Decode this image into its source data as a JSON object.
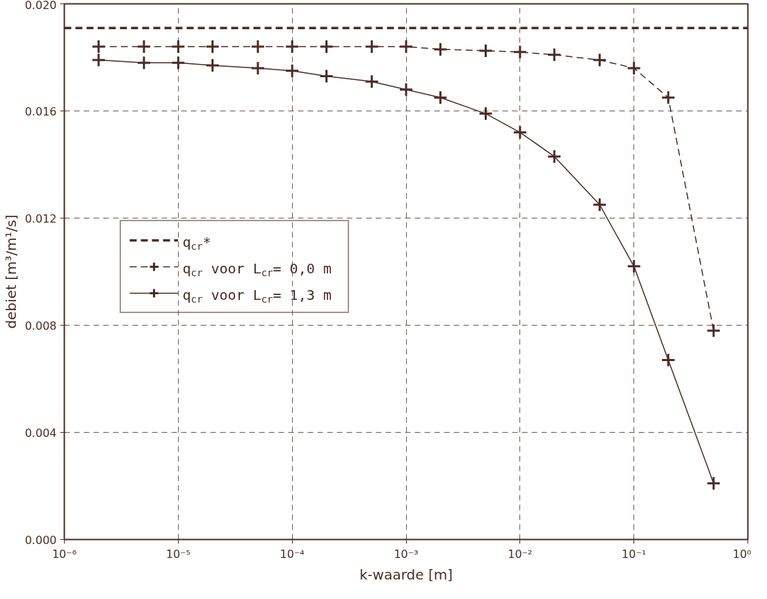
{
  "chart_data": {
    "type": "line",
    "xlabel": "k-waarde [m]",
    "ylabel": "debiet [m³/m¹/s]",
    "log": "x",
    "xlim": [
      1e-06,
      1
    ],
    "ylim": [
      0,
      0.02
    ],
    "xticks": [
      {
        "value": 1e-06,
        "label": "10⁻⁶"
      },
      {
        "value": 1e-05,
        "label": "10⁻⁵"
      },
      {
        "value": 0.0001,
        "label": "10⁻⁴"
      },
      {
        "value": 0.001,
        "label": "10⁻³"
      },
      {
        "value": 0.01,
        "label": "10⁻²"
      },
      {
        "value": 0.1,
        "label": "10⁻¹"
      },
      {
        "value": 1,
        "label": "10⁰"
      }
    ],
    "yticks": [
      {
        "value": 0,
        "label": "0.000"
      },
      {
        "value": 0.004,
        "label": "0.004"
      },
      {
        "value": 0.008,
        "label": "0.008"
      },
      {
        "value": 0.012,
        "label": "0.012"
      },
      {
        "value": 0.016,
        "label": "0.016"
      },
      {
        "value": 0.02,
        "label": "0.020"
      }
    ],
    "grid": true,
    "legend": "left",
    "series": [
      {
        "name": "q$_{cr}$*",
        "color": "#4a2c24",
        "marker": "none",
        "line_style": "dashed",
        "x": [
          1e-06,
          1
        ],
        "values": [
          0.0191,
          0.0191
        ]
      },
      {
        "name": "q$_{cr}$ voor L$_{cr}$= 0,0 m",
        "color": "#4a2c24",
        "marker": "cross",
        "line_style": "dashed",
        "x": [
          2e-06,
          5e-06,
          1e-05,
          2e-05,
          5e-05,
          0.0001,
          0.0002,
          0.0005,
          0.001,
          0.002,
          0.005,
          0.01,
          0.02,
          0.05,
          0.1,
          0.2,
          0.5
        ],
        "values": [
          0.0184,
          0.0184,
          0.0184,
          0.0184,
          0.0184,
          0.0184,
          0.0184,
          0.0184,
          0.0184,
          0.0183,
          0.01825,
          0.0182,
          0.0181,
          0.0179,
          0.0176,
          0.0165,
          0.0078
        ]
      },
      {
        "name": "q$_{cr}$ voor L$_{cr}$= 1,3 m",
        "color": "#4a2c24",
        "marker": "cross",
        "line_style": "solid",
        "x": [
          2e-06,
          5e-06,
          1e-05,
          2e-05,
          5e-05,
          0.0001,
          0.0002,
          0.0005,
          0.001,
          0.002,
          0.005,
          0.01,
          0.02,
          0.05,
          0.1,
          0.2,
          0.5
        ],
        "values": [
          0.0179,
          0.0178,
          0.0178,
          0.0177,
          0.0176,
          0.0175,
          0.0173,
          0.0171,
          0.0168,
          0.0165,
          0.0159,
          0.0152,
          0.0143,
          0.0125,
          0.0102,
          0.0067,
          0.0021
        ]
      }
    ]
  }
}
